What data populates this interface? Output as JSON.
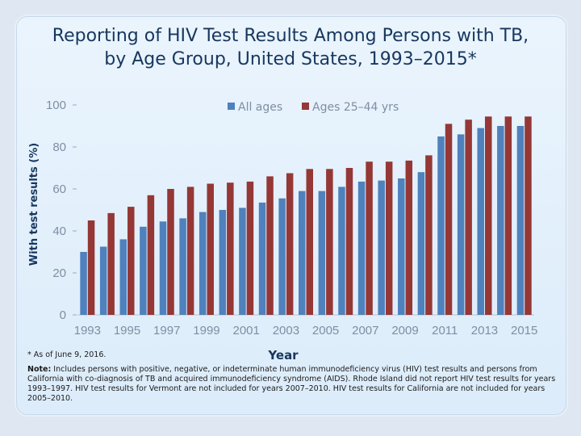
{
  "title": "Reporting of HIV Test Results Among Persons with TB, by Age Group, United States, 1993–2015*",
  "footnote_asterisk": "* As of June 9, 2016.",
  "note_label": "Note:",
  "note_text": "Includes persons with positive, negative, or indeterminate human immunodeficiency virus (HIV) test results and persons from California with co-diagnosis of TB and acquired immunodeficiency syndrome (AIDS). Rhode Island did not report HIV test results for years 1993–1997. HIV test results for Vermont are not included for years 2007–2010. HIV test results for California are not included for years 2005–2010.",
  "colors": {
    "all_ages": "#4f81bd",
    "ages_25_44": "#953735"
  },
  "chart_data": {
    "type": "bar",
    "title": "Reporting of HIV Test Results Among Persons with TB, by Age Group, United States, 1993–2015*",
    "xlabel": "Year",
    "ylabel": "With test results (%)",
    "ylim": [
      0,
      100
    ],
    "yticks": [
      0,
      20,
      40,
      60,
      80,
      100
    ],
    "legend_position": "top-right",
    "categories": [
      "1993",
      "1994",
      "1995",
      "1996",
      "1997",
      "1998",
      "1999",
      "2000",
      "2001",
      "2002",
      "2003",
      "2004",
      "2005",
      "2006",
      "2007",
      "2008",
      "2009",
      "2010",
      "2011",
      "2012",
      "2013",
      "2014",
      "2015"
    ],
    "xtick_labels": [
      "1993",
      "1995",
      "1997",
      "1999",
      "2001",
      "2003",
      "2005",
      "2007",
      "2009",
      "2011",
      "2013",
      "2015"
    ],
    "series": [
      {
        "name": "All ages",
        "values": [
          30,
          32.5,
          36,
          42,
          44.5,
          46,
          49,
          50,
          51,
          53.5,
          55.5,
          59,
          59,
          61,
          63.5,
          64,
          65,
          68,
          85,
          86,
          89,
          90,
          90
        ]
      },
      {
        "name": "Ages 25–44 yrs",
        "values": [
          45,
          48.5,
          51.5,
          57,
          60,
          61,
          62.5,
          63,
          63.5,
          66,
          67.5,
          69.5,
          69.5,
          70,
          73,
          73,
          73.5,
          76,
          91,
          93,
          94.5,
          94.5,
          94.5
        ]
      }
    ]
  }
}
